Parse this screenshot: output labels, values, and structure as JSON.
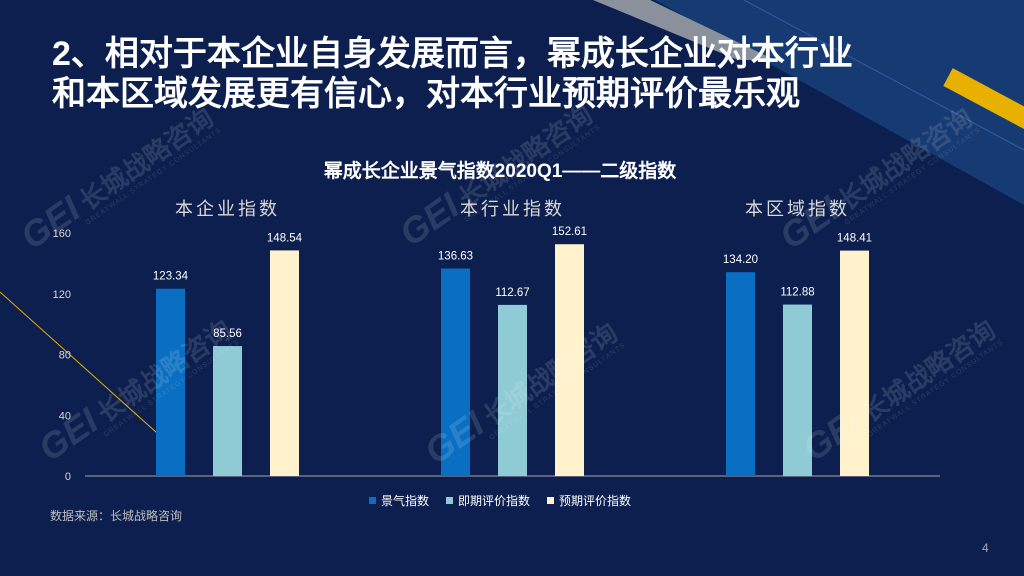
{
  "slide": {
    "title_lines": [
      "2、相对于本企业自身发展而言，幂成长企业对本行业",
      "和本区域发展更有信心，对本行业预期评价最乐观"
    ],
    "source": "数据来源：长城战略咨询",
    "page_number": "4"
  },
  "watermark": {
    "mark": "GEI",
    "name": "长城战略咨询",
    "name_en": "GREATWALL STRATEGY CONSULTANTS"
  },
  "colors": {
    "background": "#0c1f4e",
    "accent": "#e8b100",
    "stripe_gray": "#8a909c",
    "stripe_blue": "#163a72"
  },
  "chart_data": {
    "type": "bar",
    "title": "幂成长企业景气指数2020Q1——二级指数",
    "categories": [
      "本企业指数",
      "本行业指数",
      "本区域指数"
    ],
    "category_labels": "top",
    "series": [
      {
        "name": "景气指数",
        "values": [
          123.34,
          136.63,
          134.2
        ],
        "color": "#0a6fc2"
      },
      {
        "name": "即期评价指数",
        "values": [
          85.56,
          112.67,
          112.88
        ],
        "color": "#8ecbd5"
      },
      {
        "name": "预期评价指数",
        "values": [
          148.54,
          152.61,
          148.41
        ],
        "color": "#fff2cc"
      }
    ],
    "ylim": [
      0,
      160
    ],
    "yticks": [
      0,
      40,
      80,
      120,
      160
    ],
    "xlabel": "",
    "ylabel": "",
    "grid": false,
    "legend": "bottom",
    "data_labels": true
  }
}
